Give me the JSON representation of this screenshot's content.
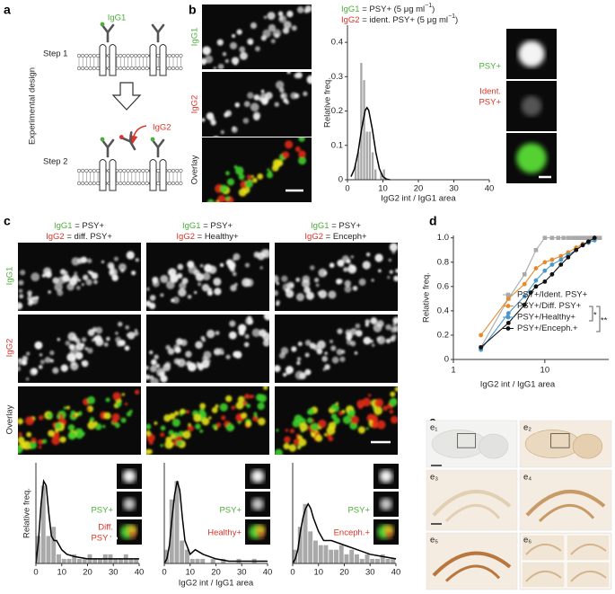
{
  "panel_a": {
    "letter": "a",
    "side_label": "Experimental design",
    "step1": "Step 1",
    "step2": "Step 2",
    "igg1": "IgG1",
    "igg2": "IgG2"
  },
  "panel_b": {
    "letter": "b",
    "image_labels": [
      "IgG1",
      "IgG2",
      "Overlay"
    ],
    "legend": [
      {
        "antibody": "IgG1",
        "text": " = PSY+ (5 μg ml",
        "exp": "−1",
        "close": ")"
      },
      {
        "antibody": "IgG2",
        "text": " = ident. PSY+ (5 μg ml",
        "exp": "−1",
        "close": ")"
      }
    ],
    "inset_labels": [
      [
        "PSY+"
      ],
      [
        "Ident.",
        "PSY+"
      ]
    ]
  },
  "panel_c": {
    "letter": "c",
    "row_labels": [
      "IgG1",
      "IgG2",
      "Overlay"
    ],
    "columns": [
      {
        "igg1": "IgG1",
        "def1": " = PSY+",
        "igg2": "IgG2",
        "def2": " = diff. PSY+",
        "inset_labels": [
          [
            "PSY+"
          ],
          [
            "Diff.",
            "PSY+"
          ]
        ]
      },
      {
        "igg1": "IgG1",
        "def1": " = PSY+",
        "igg2": "IgG2",
        "def2": " = Healthy+",
        "inset_labels": [
          [
            "PSY+"
          ],
          [
            "Healthy+"
          ]
        ]
      },
      {
        "igg1": "IgG1",
        "def1": " = PSY+",
        "igg2": "IgG2",
        "def2": " = Enceph+",
        "inset_labels": [
          [
            "PSY+"
          ],
          [
            "Enceph.+"
          ]
        ]
      }
    ]
  },
  "panel_d": {
    "letter": "d"
  },
  "panel_e": {
    "letter": "e",
    "labels": [
      "e₁",
      "e₂",
      "e₃",
      "e₄",
      "e₅",
      "e₆"
    ]
  },
  "chart_data": [
    {
      "type": "histogram",
      "x_label": "IgG2 int / IgG1 area",
      "y_label": "Relative freq.",
      "bins": [
        2.0,
        2.8,
        3.6,
        4.4,
        5.2,
        6.0,
        6.8,
        7.6,
        8.4,
        9.2,
        10.0,
        10.8
      ],
      "values": [
        0.04,
        0.08,
        0.34,
        0.29,
        0.14,
        0.14,
        0.08,
        0.03,
        0,
        0.02,
        0.03
      ],
      "color": "#a9a9a9",
      "fit": {
        "color": "#000000",
        "x": [
          1,
          2,
          3,
          4,
          5,
          5.5,
          6,
          7,
          8,
          9,
          10,
          11,
          12
        ],
        "values": [
          0.009,
          0.032,
          0.08,
          0.148,
          0.202,
          0.21,
          0.202,
          0.148,
          0.08,
          0.032,
          0.009,
          0.002,
          0
        ]
      },
      "xlim": [
        0,
        40
      ],
      "xticks": [
        0,
        10,
        20,
        30,
        40
      ],
      "ylim": [
        0,
        0.45
      ],
      "yticks": [
        0,
        0.1,
        0.2,
        0.3,
        0.4
      ]
    },
    {
      "type": "histogram",
      "y_label": "Relative freq.",
      "bins": [
        0,
        2,
        4,
        6,
        8,
        10,
        12,
        14,
        16,
        18,
        20,
        22,
        24,
        26,
        28,
        30,
        32,
        34,
        36,
        38,
        40
      ],
      "values": [
        0.06,
        0.17,
        0.06,
        0.08,
        0.02,
        0.01,
        0.01,
        0.02,
        0.01,
        0.01,
        0.02,
        0.01,
        0.01,
        0.02,
        0.02,
        0.01,
        0.01,
        0.02,
        0.01,
        0.01
      ],
      "color": "#a9a9a9",
      "fit": {
        "color": "#000000",
        "x": [
          0,
          1,
          2,
          3,
          4,
          5,
          6,
          7,
          8,
          10,
          12,
          15,
          20,
          25,
          30,
          35,
          40
        ],
        "values": [
          0,
          0.05,
          0.13,
          0.18,
          0.17,
          0.11,
          0.06,
          0.05,
          0.05,
          0.03,
          0.02,
          0.015,
          0.01,
          0.01,
          0.01,
          0.01,
          0.01
        ]
      },
      "xlim": [
        0,
        40
      ],
      "xticks": [
        0,
        10,
        20,
        30,
        40
      ],
      "ylim": [
        0,
        0.22
      ]
    },
    {
      "type": "histogram",
      "x_label": "IgG2 int / IgG1 area",
      "bins": [
        0,
        2,
        4,
        6,
        8,
        10,
        12,
        14,
        16,
        18,
        20,
        22,
        24,
        26,
        28,
        30,
        32,
        34,
        36,
        38,
        40
      ],
      "values": [
        0.03,
        0.14,
        0.18,
        0.05,
        0.03,
        0.01,
        0.01,
        0.01,
        0,
        0.01,
        0,
        0.01,
        0,
        0,
        0.01,
        0,
        0,
        0.01,
        0,
        0
      ],
      "color": "#a9a9a9",
      "fit": {
        "color": "#000000",
        "x": [
          0,
          1,
          2,
          3,
          4,
          5,
          6,
          7,
          8,
          10,
          12,
          15,
          20,
          25,
          30,
          35,
          40
        ],
        "values": [
          0,
          0.01,
          0.04,
          0.1,
          0.15,
          0.18,
          0.16,
          0.1,
          0.05,
          0.02,
          0.03,
          0.02,
          0.01,
          0.005,
          0.005,
          0.005,
          0.005
        ]
      },
      "xlim": [
        0,
        40
      ],
      "xticks": [
        0,
        10,
        20,
        30,
        40
      ],
      "ylim": [
        0,
        0.22
      ]
    },
    {
      "type": "histogram",
      "bins": [
        0,
        2,
        4,
        6,
        8,
        10,
        12,
        14,
        16,
        18,
        20,
        22,
        24,
        26,
        28,
        30,
        32,
        34,
        36,
        38,
        40
      ],
      "values": [
        0.03,
        0.08,
        0.13,
        0.07,
        0.05,
        0.04,
        0.04,
        0.03,
        0.03,
        0.04,
        0.02,
        0.03,
        0.02,
        0.01,
        0.02,
        0.01,
        0.01,
        0.02,
        0.01,
        0.01
      ],
      "color": "#a9a9a9",
      "fit": {
        "color": "#000000",
        "x": [
          0,
          1,
          2,
          3,
          4,
          5,
          6,
          7,
          8,
          10,
          12,
          15,
          20,
          25,
          30,
          35,
          40
        ],
        "values": [
          0,
          0.01,
          0.03,
          0.07,
          0.1,
          0.12,
          0.13,
          0.12,
          0.1,
          0.07,
          0.05,
          0.05,
          0.04,
          0.03,
          0.02,
          0.015,
          0.01
        ]
      },
      "xlim": [
        0,
        40
      ],
      "xticks": [
        0,
        10,
        20,
        30,
        40
      ],
      "ylim": [
        0,
        0.22
      ]
    },
    {
      "type": "line",
      "log_x": true,
      "x_label": "IgG2 int / IgG1 area",
      "y_label": "Relative freq.",
      "xlim": [
        1,
        50
      ],
      "xticks": [
        1,
        10
      ],
      "ylim": [
        0,
        1.02
      ],
      "yticks": [
        0,
        {
          "value": 0.2,
          "label": "0.2"
        },
        {
          "value": 0.4,
          "label": "0.4"
        },
        {
          "value": 0.6,
          "label": "0.6"
        },
        {
          "value": 0.8,
          "label": "0.8"
        },
        {
          "value": 1,
          "label": "1.0"
        }
      ],
      "yticks_zero_label": "0",
      "annotations": [
        "*",
        "**"
      ],
      "series": [
        {
          "name": "PSY+/Ident. PSY+",
          "color": "#a9a9a9",
          "marker": "square",
          "x": [
            2,
            4,
            6,
            8,
            10,
            12,
            14,
            16,
            18,
            20,
            22,
            24,
            26,
            28,
            30,
            32,
            34,
            36,
            38,
            40
          ],
          "values": [
            0.1,
            0.5,
            0.7,
            0.9,
            1,
            1,
            1,
            1,
            1,
            1,
            1,
            1,
            1,
            1,
            1,
            1,
            1,
            1,
            1,
            1
          ]
        },
        {
          "name": "PSY+/Diff. PSY+",
          "color": "#e8892b",
          "marker": "circle",
          "x": [
            2,
            4,
            6,
            8,
            10,
            12,
            15,
            18,
            22,
            26,
            30,
            35
          ],
          "values": [
            0.2,
            0.5,
            0.62,
            0.75,
            0.8,
            0.82,
            0.85,
            0.88,
            0.92,
            0.95,
            0.97,
            1
          ]
        },
        {
          "name": "PSY+/Healthy+",
          "color": "#4b97c9",
          "marker": "circle",
          "x": [
            2,
            4,
            6,
            8,
            10,
            12,
            15,
            18,
            22,
            26,
            30,
            35
          ],
          "values": [
            0.08,
            0.38,
            0.52,
            0.65,
            0.73,
            0.78,
            0.82,
            0.86,
            0.9,
            0.94,
            0.96,
            0.98
          ]
        },
        {
          "name": "PSY+/Enceph.+",
          "color": "#111111",
          "marker": "circle",
          "x": [
            2,
            4,
            6,
            7,
            8,
            10,
            12,
            15,
            18,
            22,
            26,
            30,
            35
          ],
          "values": [
            0.1,
            0.3,
            0.45,
            0.55,
            0.6,
            0.64,
            0.7,
            0.78,
            0.84,
            0.9,
            0.94,
            0.97,
            1
          ]
        }
      ]
    }
  ]
}
